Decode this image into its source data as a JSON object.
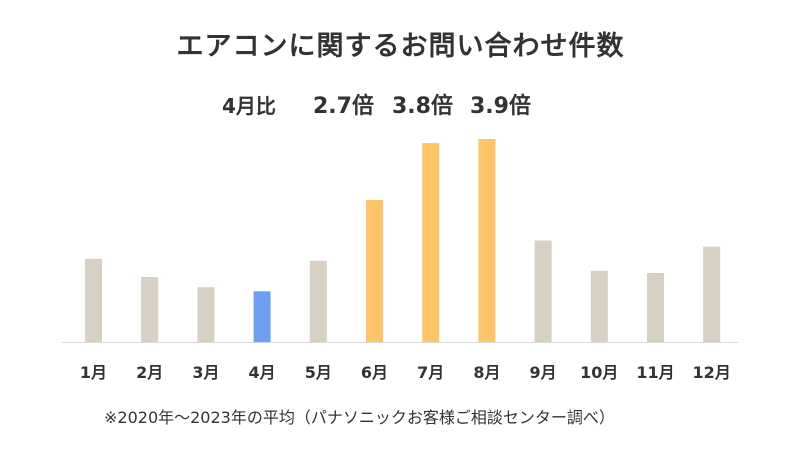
{
  "chart_data": {
    "type": "bar",
    "title": "エアコンに関するお問い合わせ件数",
    "categories": [
      "1月",
      "2月",
      "3月",
      "4月",
      "5月",
      "6月",
      "7月",
      "8月",
      "9月",
      "10月",
      "11月",
      "12月"
    ],
    "values": [
      41,
      32,
      27,
      25,
      40,
      70,
      98,
      100,
      50,
      35,
      34,
      47
    ],
    "ylim": [
      0,
      100
    ],
    "xlabel": "",
    "ylabel": "",
    "colors": {
      "default": "#d9d0c4",
      "baseline_month": "#6c9ff4",
      "peak_months": "#ffc467",
      "axis": "#d9d9d9"
    },
    "bar_colors": [
      "default",
      "default",
      "default",
      "baseline_month",
      "default",
      "peak_months",
      "peak_months",
      "peak_months",
      "default",
      "default",
      "default",
      "default"
    ],
    "comparison": {
      "label": "4月比",
      "values": [
        "2.7倍",
        "3.8倍",
        "3.9倍"
      ]
    },
    "note": "※2020年～2023年の平均（パナソニックお客様ご相談センター調べ）"
  }
}
